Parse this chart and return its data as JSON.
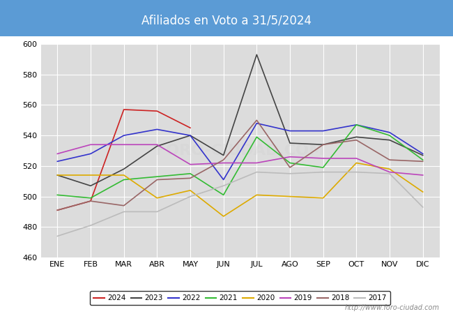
{
  "title": "Afiliados en Voto a 31/5/2024",
  "title_color": "#4455cc",
  "bg_color": "#dcdcdc",
  "plot_bg_color": "#dcdcdc",
  "header_bg": "#5b9bd5",
  "months": [
    "ENE",
    "FEB",
    "MAR",
    "ABR",
    "MAY",
    "JUN",
    "JUL",
    "AGO",
    "SEP",
    "OCT",
    "NOV",
    "DIC"
  ],
  "ylim": [
    460,
    600
  ],
  "yticks": [
    460,
    480,
    500,
    520,
    540,
    560,
    580,
    600
  ],
  "series": {
    "2024": {
      "color": "#cc2222",
      "data": [
        491,
        497,
        557,
        556,
        545,
        null,
        null,
        null,
        null,
        null,
        null,
        null
      ]
    },
    "2023": {
      "color": "#444444",
      "data": [
        514,
        507,
        518,
        533,
        540,
        527,
        593,
        535,
        534,
        539,
        537,
        527
      ]
    },
    "2022": {
      "color": "#3333cc",
      "data": [
        523,
        528,
        540,
        544,
        540,
        511,
        548,
        543,
        543,
        547,
        542,
        528
      ]
    },
    "2021": {
      "color": "#33bb33",
      "data": [
        501,
        499,
        511,
        513,
        515,
        501,
        539,
        522,
        519,
        547,
        540,
        524
      ]
    },
    "2020": {
      "color": "#ddaa00",
      "data": [
        514,
        514,
        514,
        499,
        504,
        487,
        501,
        500,
        499,
        522,
        518,
        503
      ]
    },
    "2019": {
      "color": "#bb44bb",
      "data": [
        528,
        534,
        534,
        534,
        521,
        522,
        522,
        526,
        525,
        525,
        516,
        514
      ]
    },
    "2018": {
      "color": "#996666",
      "data": [
        491,
        497,
        494,
        511,
        512,
        524,
        550,
        519,
        534,
        537,
        524,
        523
      ]
    },
    "2017": {
      "color": "#bbbbbb",
      "data": [
        474,
        481,
        490,
        490,
        500,
        507,
        516,
        515,
        516,
        516,
        515,
        493
      ]
    }
  },
  "url": "http://www.foro-ciudad.com",
  "legend_order": [
    "2024",
    "2023",
    "2022",
    "2021",
    "2020",
    "2019",
    "2018",
    "2017"
  ]
}
